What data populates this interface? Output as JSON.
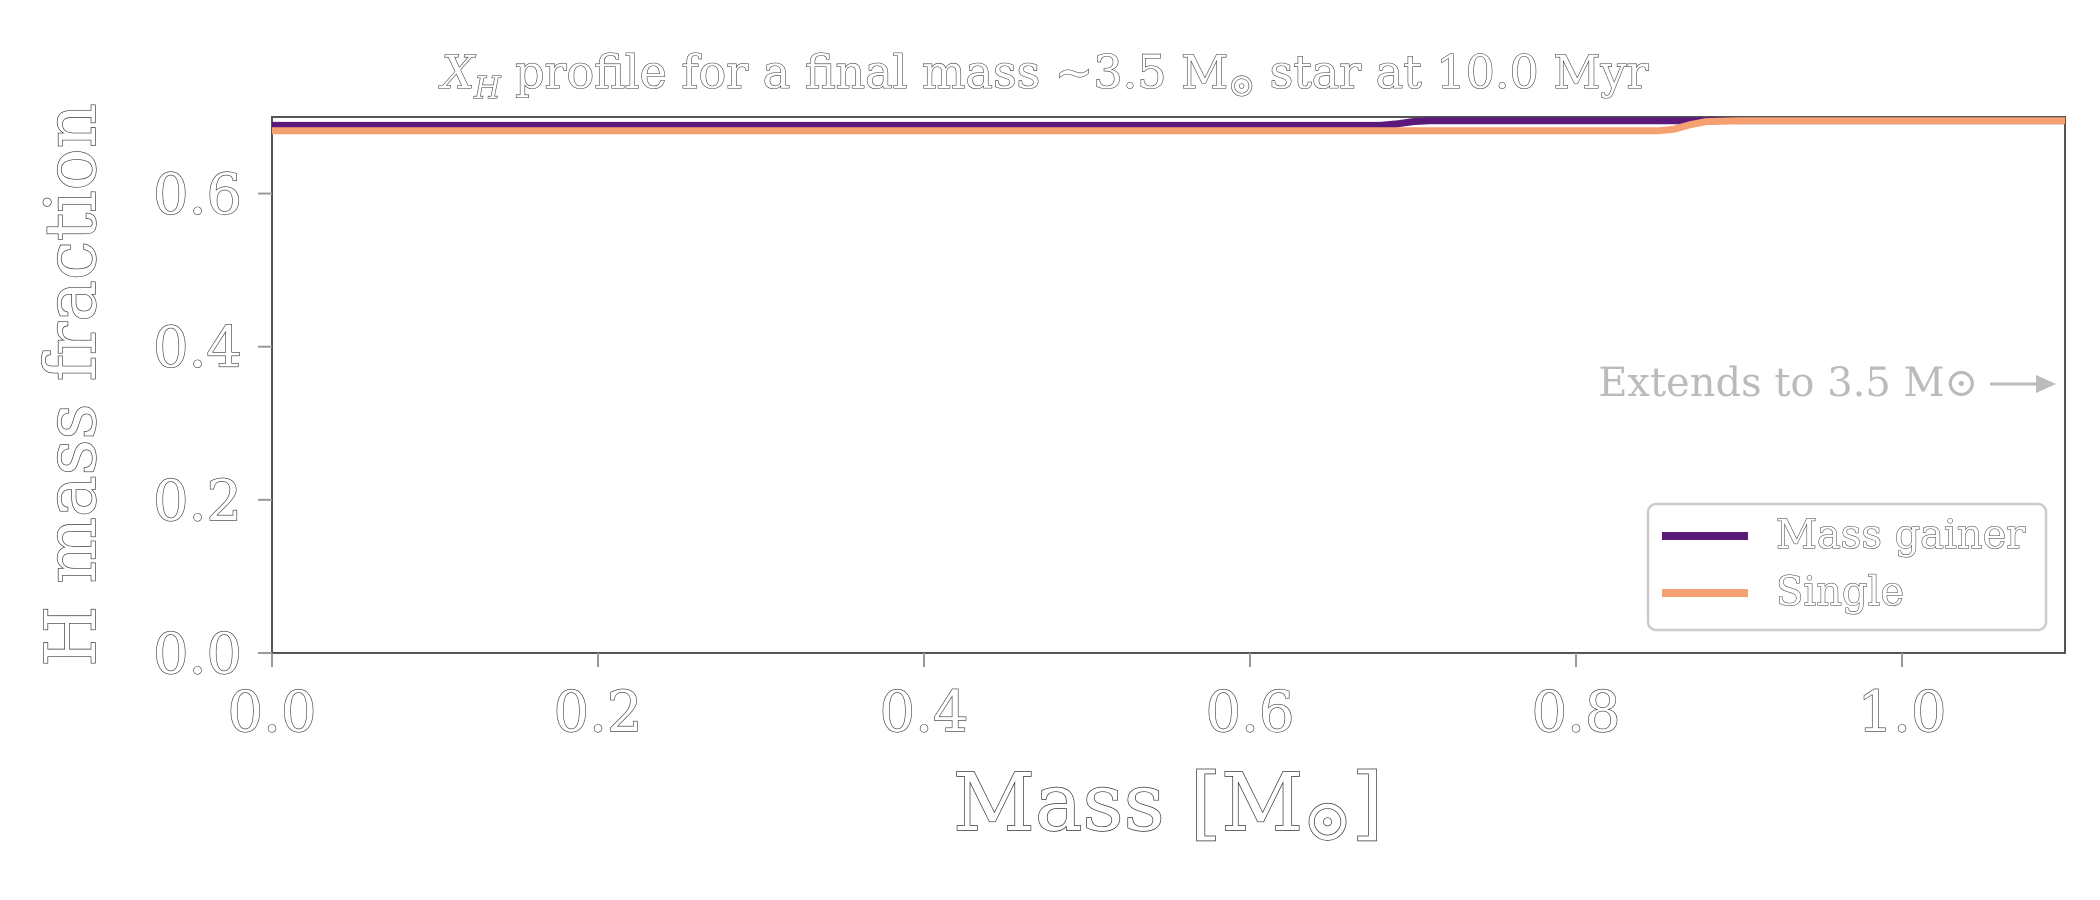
{
  "chart_data": {
    "type": "line",
    "title": "X_H profile for a final mass ~3.5 M⊙ star at 10.0 Myr",
    "title_parts": {
      "symbol": "X",
      "subscript": "H",
      "rest": " profile for a final mass ~3.5 M",
      "sun": "⊙",
      "tail": " star at 10.0 Myr"
    },
    "xlabel": "Mass [M⊙]",
    "xlabel_parts": {
      "main": "Mass [M",
      "sun": "⊙",
      "close": "]"
    },
    "ylabel": "H mass fraction",
    "xlim": [
      0.0,
      1.1
    ],
    "ylim": [
      0.0,
      0.7
    ],
    "xticks": [
      0.0,
      0.2,
      0.4,
      0.6,
      0.8,
      1.0
    ],
    "xtick_labels": [
      "0.0",
      "0.2",
      "0.4",
      "0.6",
      "0.8",
      "1.0"
    ],
    "yticks": [
      0.0,
      0.2,
      0.4,
      0.6
    ],
    "ytick_labels": [
      "0.0",
      "0.2",
      "0.4",
      "0.6"
    ],
    "grid": false,
    "legend_position": "lower-right",
    "series": [
      {
        "name": "Mass gainer",
        "color": "#5b1a7a",
        "x": [
          0.0,
          0.2,
          0.4,
          0.6,
          0.68,
          0.69,
          0.7,
          0.71,
          0.8,
          1.0,
          1.1
        ],
        "y": [
          0.689,
          0.689,
          0.689,
          0.689,
          0.689,
          0.691,
          0.694,
          0.695,
          0.695,
          0.695,
          0.695
        ]
      },
      {
        "name": "Single",
        "color": "#f4a070",
        "x": [
          0.0,
          0.2,
          0.4,
          0.6,
          0.8,
          0.85,
          0.86,
          0.87,
          0.88,
          0.9,
          1.0,
          1.1
        ],
        "y": [
          0.682,
          0.682,
          0.682,
          0.682,
          0.682,
          0.682,
          0.684,
          0.69,
          0.694,
          0.695,
          0.695,
          0.695
        ]
      }
    ],
    "annotation": {
      "text": "Extends to 3.5 M⊙",
      "arrow": "right-arrow"
    }
  }
}
